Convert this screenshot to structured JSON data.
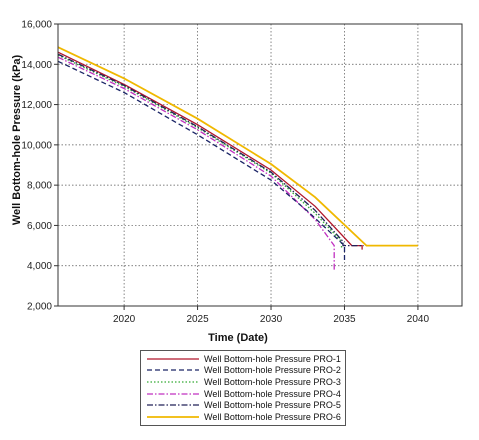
{
  "chart_data": {
    "type": "line",
    "xlabel": "Time (Date)",
    "ylabel": "Well Bottom-hole Pressure (kPa)",
    "xlim": [
      2015.5,
      2043
    ],
    "ylim": [
      2000,
      16000
    ],
    "xticks": [
      2020,
      2025,
      2030,
      2035,
      2040
    ],
    "xtick_labels": [
      "2020",
      "2025",
      "2030",
      "2035",
      "2040"
    ],
    "yticks": [
      2000,
      4000,
      6000,
      8000,
      10000,
      12000,
      14000,
      16000
    ],
    "ytick_labels": [
      "2,000",
      "4,000",
      "6,000",
      "8,000",
      "10,000",
      "12,000",
      "14,000",
      "16,000"
    ],
    "grid": true,
    "legend_position": "bottom",
    "series": [
      {
        "name": "Well Bottom-hole Pressure PRO-1",
        "color": "#b0162a",
        "dash": "solid",
        "points": [
          [
            2015.5,
            14600
          ],
          [
            2020,
            13000
          ],
          [
            2025,
            11000
          ],
          [
            2030,
            8750
          ],
          [
            2033,
            6950
          ],
          [
            2035.5,
            5000
          ],
          [
            2036.2,
            5000
          ],
          [
            2036.2,
            4800
          ]
        ]
      },
      {
        "name": "Well Bottom-hole Pressure PRO-2",
        "color": "#1a2466",
        "dash": "dashed",
        "points": [
          [
            2015.5,
            14150
          ],
          [
            2020,
            12600
          ],
          [
            2025,
            10500
          ],
          [
            2030,
            8250
          ],
          [
            2032.5,
            6700
          ],
          [
            2035,
            5000
          ],
          [
            2035,
            4200
          ]
        ]
      },
      {
        "name": "Well Bottom-hole Pressure PRO-3",
        "color": "#33aa33",
        "dash": "dotted",
        "points": [
          [
            2015.5,
            14450
          ],
          [
            2020,
            12900
          ],
          [
            2025,
            10850
          ],
          [
            2030,
            8600
          ],
          [
            2033,
            6600
          ],
          [
            2034.8,
            5200
          ],
          [
            2034.8,
            4900
          ]
        ]
      },
      {
        "name": "Well Bottom-hole Pressure PRO-4",
        "color": "#c030c0",
        "dash": "dashdot",
        "points": [
          [
            2015.5,
            14350
          ],
          [
            2020,
            12800
          ],
          [
            2025,
            10750
          ],
          [
            2030,
            8450
          ],
          [
            2033,
            6300
          ],
          [
            2034.3,
            5000
          ],
          [
            2034.3,
            3800
          ]
        ]
      },
      {
        "name": "Well Bottom-hole Pressure PRO-5",
        "color": "#202058",
        "dash": "dashdot",
        "points": [
          [
            2015.5,
            14500
          ],
          [
            2020,
            12950
          ],
          [
            2025,
            10900
          ],
          [
            2030,
            8650
          ],
          [
            2033,
            6750
          ],
          [
            2034.9,
            5200
          ],
          [
            2034.9,
            5000
          ],
          [
            2036.3,
            5000
          ]
        ]
      },
      {
        "name": "Well Bottom-hole Pressure PRO-6",
        "color": "#f0b800",
        "dash": "solid",
        "points": [
          [
            2015.5,
            14850
          ],
          [
            2020,
            13300
          ],
          [
            2025,
            11300
          ],
          [
            2030,
            9050
          ],
          [
            2033,
            7400
          ],
          [
            2036.5,
            5000
          ],
          [
            2040,
            5000
          ]
        ]
      }
    ]
  }
}
